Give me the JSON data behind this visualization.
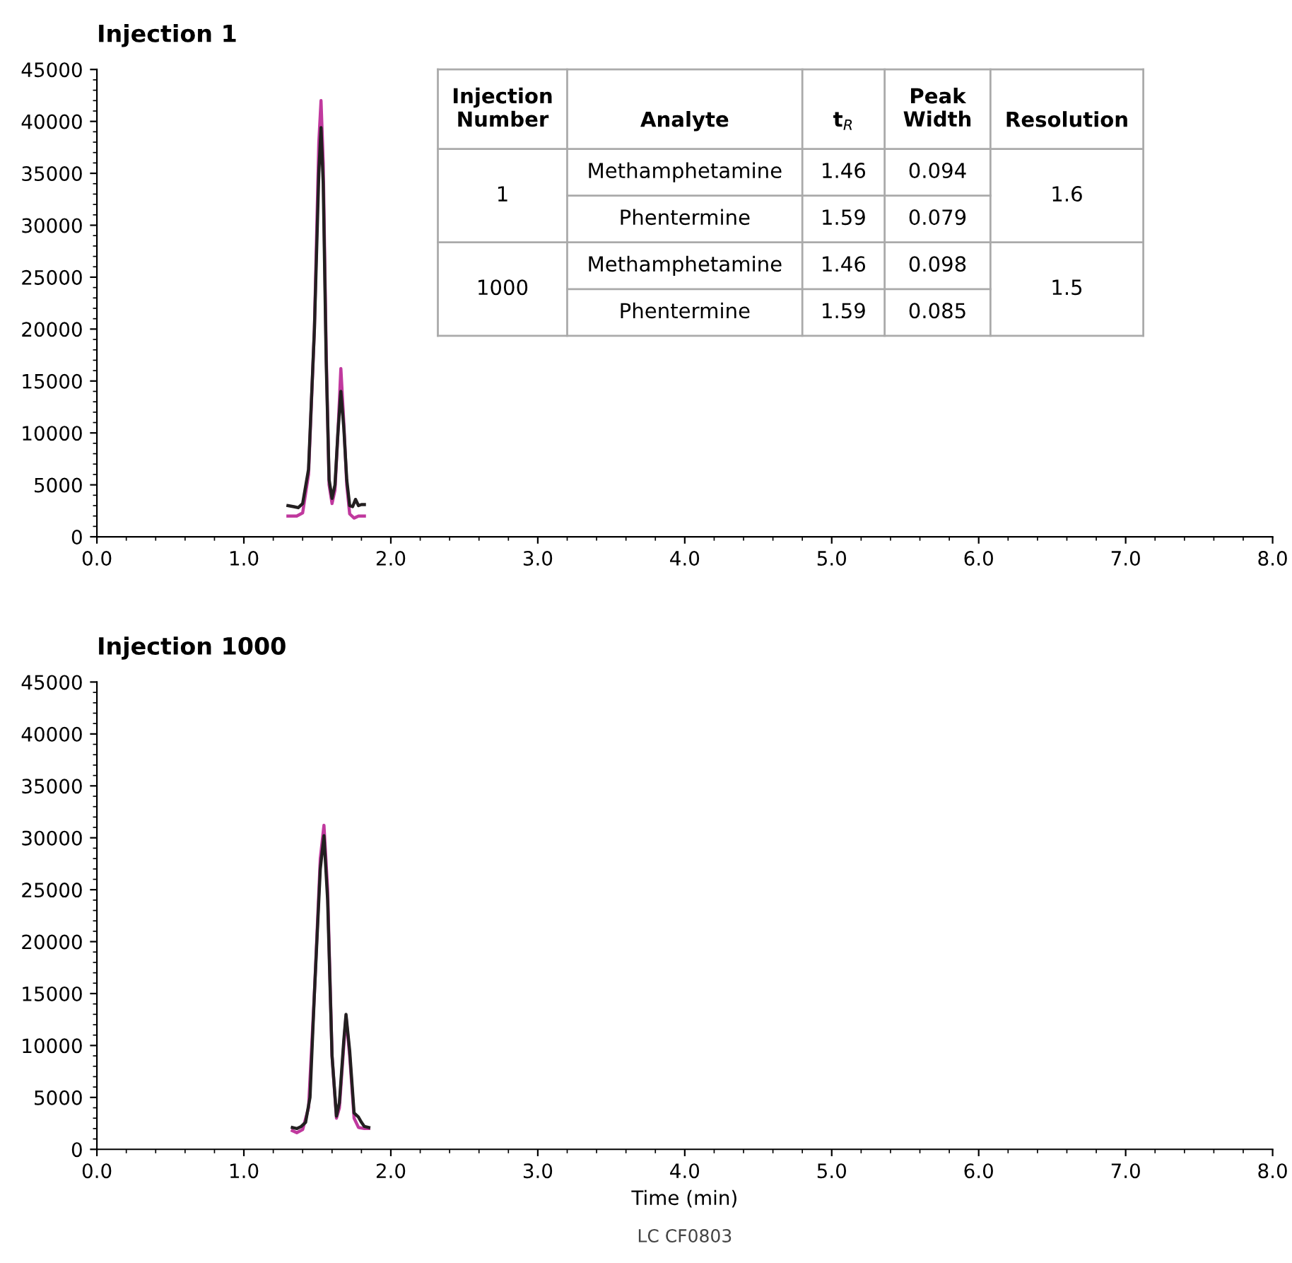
{
  "chart_data": [
    {
      "type": "line",
      "title": "Injection 1",
      "xlim": [
        0,
        8
      ],
      "xticks": [
        {
          "value": 0,
          "label": "0.0"
        },
        {
          "value": 1,
          "label": "1.0"
        },
        {
          "value": 2,
          "label": "2.0"
        },
        {
          "value": 3,
          "label": "3.0"
        },
        {
          "value": 4,
          "label": "4.0"
        },
        {
          "value": 5,
          "label": "5.0"
        },
        {
          "value": 6,
          "label": "6.0"
        },
        {
          "value": 7,
          "label": "7.0"
        },
        {
          "value": 8,
          "label": "8.0"
        }
      ],
      "ylim": [
        0,
        45000
      ],
      "yticks": [
        0,
        5000,
        10000,
        15000,
        20000,
        25000,
        30000,
        35000,
        40000,
        45000
      ],
      "grid": false,
      "legend": false,
      "series": [
        {
          "color": "#c0399e",
          "x": [
            1.3,
            1.36,
            1.4,
            1.44,
            1.48,
            1.51,
            1.525,
            1.54,
            1.56,
            1.58,
            1.6,
            1.62,
            1.64,
            1.66,
            1.68,
            1.7,
            1.72,
            1.75,
            1.78,
            1.82
          ],
          "values": [
            2000,
            2000,
            2300,
            6000,
            20000,
            38000,
            42000,
            36000,
            18000,
            5000,
            3200,
            4500,
            10000,
            16200,
            11000,
            5000,
            2200,
            1800,
            2000,
            2000
          ]
        },
        {
          "color": "#231f20",
          "x": [
            1.3,
            1.34,
            1.37,
            1.4,
            1.44,
            1.48,
            1.51,
            1.525,
            1.54,
            1.56,
            1.58,
            1.6,
            1.62,
            1.64,
            1.66,
            1.68,
            1.7,
            1.72,
            1.74,
            1.76,
            1.78,
            1.8,
            1.82
          ],
          "values": [
            3000,
            2900,
            2800,
            3200,
            6500,
            20000,
            35000,
            39400,
            34000,
            17000,
            5500,
            3700,
            5000,
            10000,
            14000,
            10500,
            5500,
            3000,
            2900,
            3600,
            3000,
            3100,
            3100
          ]
        }
      ],
      "annotations": [
        "Injection\nNumber",
        "Analyte",
        "t$_{R}$",
        "Peak\nWidth",
        "Resolution",
        "1",
        "Methamphetamine",
        "1.46",
        "0.094",
        "1.6",
        "Phentermine",
        "1.59",
        "0.079",
        "1000",
        "Methamphetamine",
        "1.46",
        "0.098",
        "1.5",
        "Phentermine",
        "1.59",
        "0.085"
      ]
    },
    {
      "type": "line",
      "title": "Injection 1000",
      "xlabel": "Time (min)",
      "xlim": [
        0,
        8
      ],
      "xticks": [
        {
          "value": 0,
          "label": "0.0"
        },
        {
          "value": 1,
          "label": "1.0"
        },
        {
          "value": 2,
          "label": "2.0"
        },
        {
          "value": 3,
          "label": "3.0"
        },
        {
          "value": 4,
          "label": "4.0"
        },
        {
          "value": 5,
          "label": "5.0"
        },
        {
          "value": 6,
          "label": "6.0"
        },
        {
          "value": 7,
          "label": "7.0"
        },
        {
          "value": 8,
          "label": "8.0"
        }
      ],
      "ylim": [
        0,
        45000
      ],
      "yticks": [
        0,
        5000,
        10000,
        15000,
        20000,
        25000,
        30000,
        35000,
        40000,
        45000
      ],
      "grid": false,
      "legend": false,
      "series": [
        {
          "color": "#c0399e",
          "x": [
            1.33,
            1.36,
            1.4,
            1.44,
            1.48,
            1.52,
            1.545,
            1.57,
            1.6,
            1.63,
            1.65,
            1.68,
            1.695,
            1.72,
            1.75,
            1.78,
            1.82,
            1.85
          ],
          "values": [
            1800,
            1600,
            1900,
            4000,
            15000,
            28000,
            31200,
            25000,
            9000,
            3000,
            4000,
            10000,
            12800,
            9000,
            3000,
            2100,
            2000,
            2000
          ]
        },
        {
          "color": "#231f20",
          "x": [
            1.33,
            1.36,
            1.39,
            1.42,
            1.45,
            1.48,
            1.52,
            1.545,
            1.57,
            1.6,
            1.63,
            1.65,
            1.68,
            1.695,
            1.72,
            1.75,
            1.78,
            1.8,
            1.82,
            1.85
          ],
          "values": [
            2100,
            2000,
            2200,
            2600,
            5000,
            15000,
            27000,
            30200,
            24000,
            9000,
            3200,
            4500,
            10500,
            13000,
            9500,
            3500,
            3100,
            2600,
            2200,
            2100
          ]
        }
      ],
      "annotations": [
        "LC CF0803"
      ]
    }
  ]
}
